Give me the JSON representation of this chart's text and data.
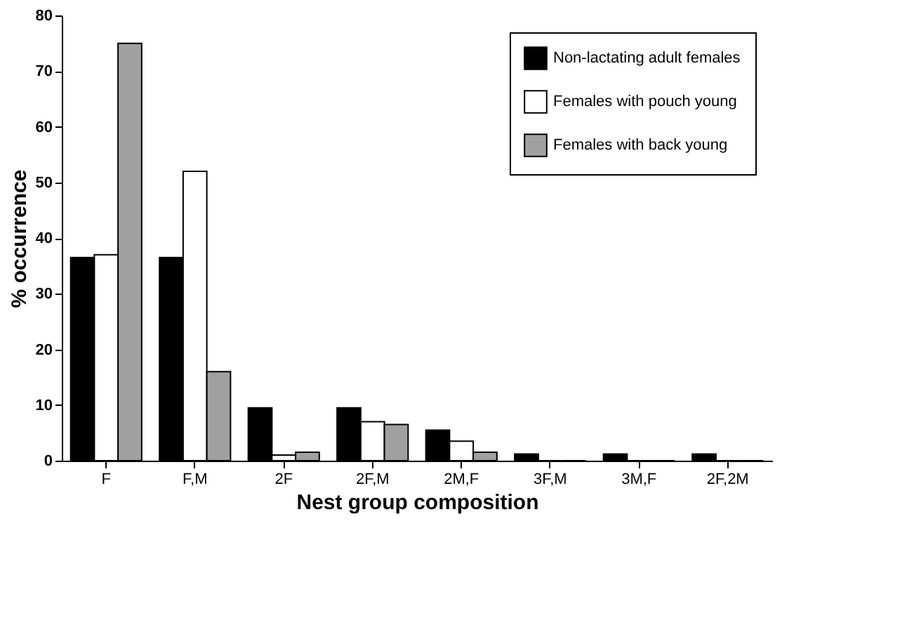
{
  "chart_data": {
    "type": "bar",
    "xlabel": "Nest group composition",
    "ylabel": "% occurrence",
    "categories": [
      "F",
      "F,M",
      "2F",
      "2F,M",
      "2M,F",
      "3F,M",
      "3M,F",
      "2F,2M"
    ],
    "series": [
      {
        "name": "Non-lactating adult females",
        "color": "#000000",
        "values": [
          36.5,
          36.5,
          9.5,
          9.5,
          5.5,
          1.2,
          1.2,
          1.2
        ]
      },
      {
        "name": "Females with pouch young",
        "color": "#ffffff",
        "values": [
          37,
          52,
          1,
          7,
          3.5,
          0,
          0,
          0
        ]
      },
      {
        "name": "Females with back young",
        "color": "#a0a0a0",
        "values": [
          75,
          16,
          1.5,
          6.5,
          1.5,
          0,
          0,
          0
        ]
      }
    ],
    "ylim": [
      0,
      80
    ],
    "yticks": [
      0,
      10,
      20,
      30,
      40,
      50,
      60,
      70,
      80
    ],
    "grid": false,
    "legend": "top right"
  }
}
